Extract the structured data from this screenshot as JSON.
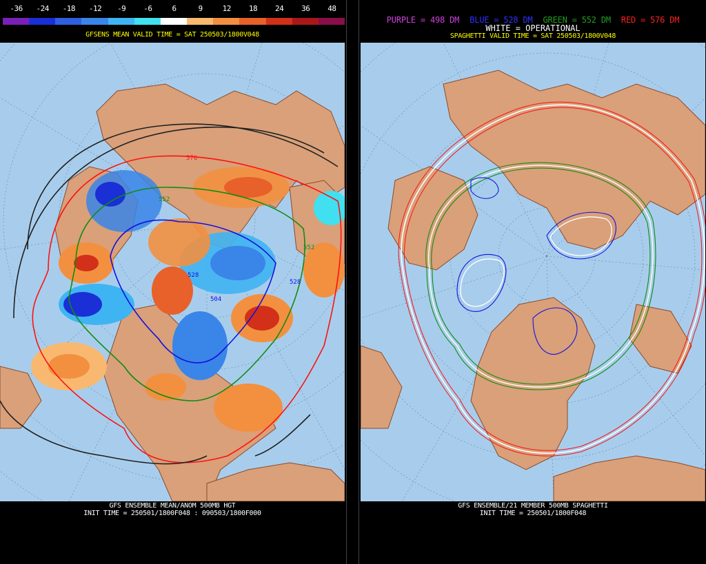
{
  "left": {
    "scale_values": [
      "-36",
      "-24",
      "-18",
      "-12",
      "-9",
      "-6",
      "6",
      "9",
      "12",
      "18",
      "24",
      "36",
      "48"
    ],
    "scale_colors": [
      "#7a1fb8",
      "#1a2fd6",
      "#2f5fe0",
      "#3a85e8",
      "#3fb4f2",
      "#40e0f0",
      "#ffffff",
      "#f8b870",
      "#f29040",
      "#e8602a",
      "#d23018",
      "#a81818",
      "#8a0e4a"
    ],
    "title": "GFSENS MEAN VALID TIME = SAT 250503/1800V048",
    "footer_line1": "GFS ENSEMBLE MEAN/ANOM 500MB HGT",
    "footer_line2": "INIT TIME = 250501/1800F048 : 090503/1800F000",
    "contour_labels": [
      "576",
      "552",
      "528",
      "504",
      "528",
      "552"
    ]
  },
  "right": {
    "legend": {
      "purple": "PURPLE = 498 DM",
      "blue": "BLUE = 528 DM",
      "green": "GREEN = 552 DM",
      "red": "RED = 576 DM"
    },
    "operational": "WHITE = OPERATIONAL",
    "title": "SPAGHETTI VALID TIME = SAT 250503/1800V048",
    "footer_line1": "GFS ENSEMBLE/21 MEMBER 500MB SPAGHETTI",
    "footer_line2": "INIT TIME = 250501/1800F048"
  },
  "colors": {
    "ocean": "#a8cdec",
    "land": "#d9a07a",
    "coast": "#8b4a2a",
    "grid": "#6e8fb0",
    "red_contour": "#ff1010",
    "green_contour": "#108c10",
    "blue_contour": "#1010e0",
    "white_contour": "#ffffff",
    "black_contour": "#202020"
  }
}
